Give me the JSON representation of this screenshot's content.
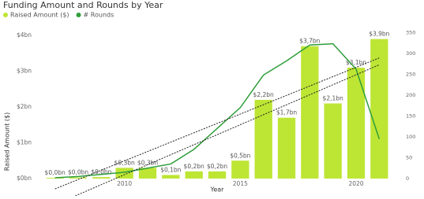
{
  "chart_data": {
    "type": "combo",
    "title": "Funding Amount and Rounds by Year",
    "x_label": "Year",
    "y_label": "Raised Amount ($)",
    "x": [
      2007,
      2008,
      2009,
      2010,
      2011,
      2012,
      2013,
      2014,
      2015,
      2016,
      2017,
      2018,
      2019,
      2020,
      2021
    ],
    "xlim": [
      2006.5,
      2021.5
    ],
    "xticks": [
      2010,
      2015,
      2020
    ],
    "ylim": [
      0,
      4.2
    ],
    "yticks": [
      {
        "value": 0,
        "label": "$0bn"
      },
      {
        "value": 1,
        "label": "$1bn"
      },
      {
        "value": 2,
        "label": "$2bn"
      },
      {
        "value": 3,
        "label": "$3bn"
      },
      {
        "value": 4,
        "label": "$4bn"
      }
    ],
    "y2lim": [
      0,
      360
    ],
    "y2ticks": [
      0,
      50,
      100,
      150,
      200,
      250,
      300,
      350
    ],
    "trendlines": true,
    "series": [
      {
        "name": "Raised Amount ($)",
        "type": "bar",
        "color": "#bde534",
        "values": [
          0.02,
          0.03,
          0.04,
          0.3,
          0.3,
          0.1,
          0.2,
          0.2,
          0.5,
          2.2,
          1.7,
          3.7,
          2.1,
          3.1,
          3.9
        ],
        "value_labels": [
          "$0,0bn",
          "$0,0bn",
          "$0,0bn",
          "$0,3bn",
          "$0,3bn",
          "$0,1bn",
          "$0,2bn",
          "$0,2bn",
          "$0,5bn",
          "$2,2bn",
          "$1,7bn",
          "$3,7bn",
          "$2,1bn",
          "$3,1bn",
          "$3,9bn"
        ]
      },
      {
        "name": "# Rounds",
        "type": "line",
        "color": "#2f9e3a",
        "axis": "y2",
        "values": [
          2,
          5,
          10,
          15,
          25,
          35,
          70,
          120,
          170,
          248,
          282,
          320,
          323,
          262,
          95
        ]
      }
    ]
  }
}
